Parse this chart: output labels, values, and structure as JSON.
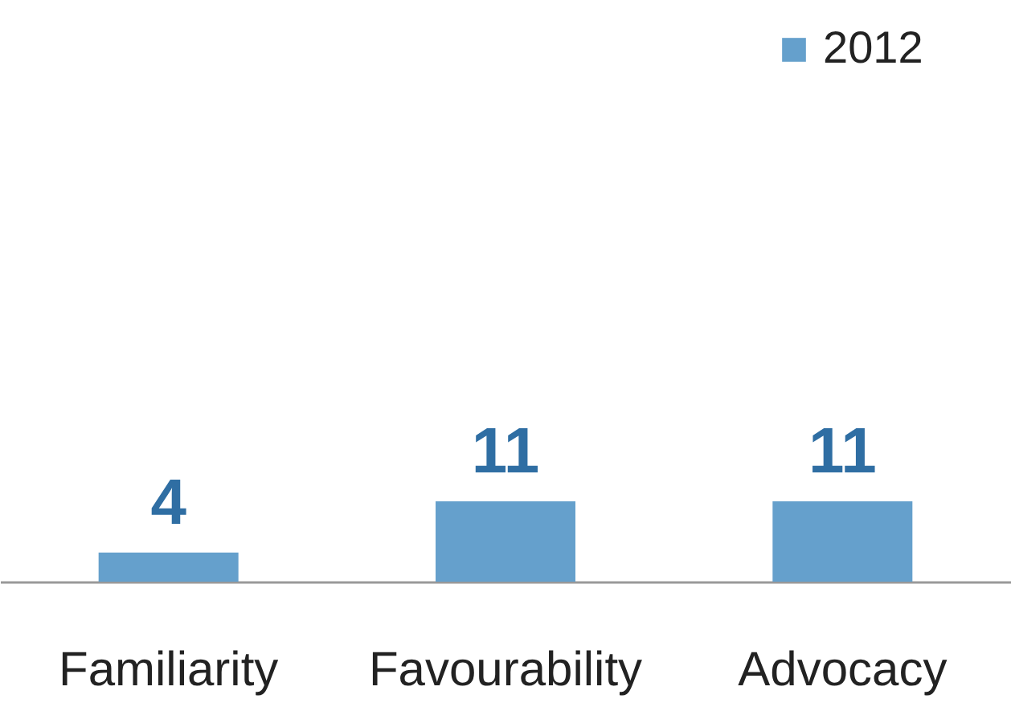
{
  "chart_data": {
    "type": "bar",
    "categories": [
      "Familiarity",
      "Favourability",
      "Advocacy"
    ],
    "series": [
      {
        "name": "2012",
        "color": "#65a0cc",
        "values": [
          4,
          11,
          11
        ]
      }
    ],
    "data_labels": true,
    "legend": "top right",
    "grid": false
  }
}
